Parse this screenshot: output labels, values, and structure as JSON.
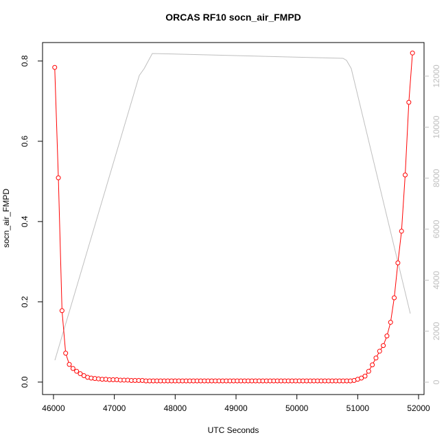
{
  "chart_data": {
    "type": "line",
    "title": "ORCAS RF10 socn_air_FMPD",
    "xlabel": "UTC Seconds",
    "ylabel": "socn_air_FMPD",
    "xlim": [
      45820,
      52090
    ],
    "ylim": [
      -0.031,
      0.846
    ],
    "y2lim": [
      -484,
      13317
    ],
    "xticks": [
      46000,
      47000,
      48000,
      49000,
      50000,
      51000,
      52000
    ],
    "yticks": [
      {
        "value": 0,
        "label": "0.0"
      },
      0.2,
      0.4,
      0.6,
      0.8
    ],
    "y2ticks": [
      0,
      2000,
      4000,
      6000,
      8000,
      10000,
      12000
    ],
    "y2color": "#bebebe",
    "series": [
      {
        "color": "#ff0000",
        "markers": true,
        "x": [
          46020,
          46080,
          46140,
          46200,
          46260,
          46320,
          46380,
          46440,
          46500,
          46560,
          46620,
          46680,
          46740,
          46800,
          46860,
          46920,
          46980,
          47040,
          47100,
          47160,
          47220,
          47280,
          47340,
          47400,
          47460,
          47520,
          47580,
          47640,
          47700,
          47760,
          47820,
          47880,
          47940,
          48000,
          48060,
          48120,
          48180,
          48240,
          48300,
          48360,
          48420,
          48480,
          48540,
          48600,
          48660,
          48720,
          48780,
          48840,
          48900,
          48960,
          49020,
          49080,
          49140,
          49200,
          49260,
          49320,
          49380,
          49440,
          49500,
          49560,
          49620,
          49680,
          49740,
          49800,
          49860,
          49920,
          49980,
          50040,
          50100,
          50160,
          50220,
          50280,
          50340,
          50400,
          50460,
          50520,
          50580,
          50640,
          50700,
          50760,
          50820,
          50880,
          50940,
          51000,
          51060,
          51120,
          51180,
          51240,
          51300,
          51360,
          51420,
          51480,
          51540,
          51600,
          51660,
          51720,
          51780,
          51840,
          51900
        ],
        "values": [
          0.784,
          0.509,
          0.178,
          0.072,
          0.044,
          0.034,
          0.027,
          0.021,
          0.016,
          0.012,
          0.01,
          0.009,
          0.008,
          0.007,
          0.007,
          0.006,
          0.006,
          0.006,
          0.005,
          0.005,
          0.005,
          0.004,
          0.004,
          0.004,
          0.004,
          0.003,
          0.003,
          0.003,
          0.003,
          0.003,
          0.003,
          0.003,
          0.003,
          0.003,
          0.003,
          0.003,
          0.003,
          0.003,
          0.003,
          0.003,
          0.003,
          0.003,
          0.003,
          0.003,
          0.003,
          0.003,
          0.003,
          0.003,
          0.003,
          0.003,
          0.003,
          0.003,
          0.003,
          0.003,
          0.003,
          0.003,
          0.003,
          0.003,
          0.003,
          0.003,
          0.003,
          0.003,
          0.003,
          0.003,
          0.003,
          0.003,
          0.003,
          0.003,
          0.003,
          0.003,
          0.003,
          0.003,
          0.003,
          0.003,
          0.003,
          0.003,
          0.003,
          0.003,
          0.003,
          0.003,
          0.003,
          0.003,
          0.004,
          0.007,
          0.01,
          0.015,
          0.027,
          0.043,
          0.06,
          0.077,
          0.091,
          0.115,
          0.149,
          0.21,
          0.297,
          0.376,
          0.516,
          0.697,
          0.82
        ]
      },
      {
        "color": "#bebebe",
        "axis": "y2",
        "markers": false,
        "x": [
          46023,
          47410,
          47490,
          47624,
          50759,
          50816,
          50894,
          51864
        ],
        "values": [
          861,
          12026,
          12295,
          12887,
          12699,
          12618,
          12295,
          2690
        ]
      }
    ]
  }
}
